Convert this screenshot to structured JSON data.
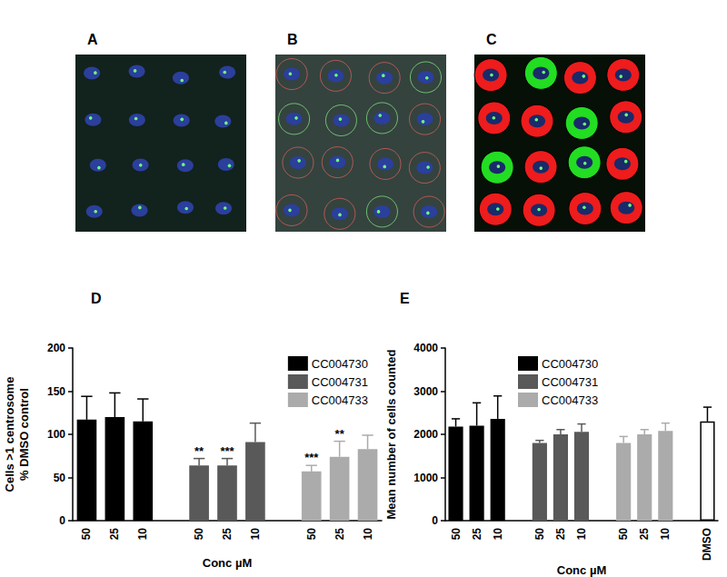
{
  "image_panels": [
    {
      "label": "A"
    },
    {
      "label": "B"
    },
    {
      "label": "C"
    }
  ],
  "chart_data": [
    {
      "type": "bar",
      "title": "D",
      "xlabel": "Conc µM",
      "ylabel": "Cells >1 centrosome\n% DMSO control",
      "categories": [
        "50",
        "25",
        "10",
        null,
        "50",
        "25",
        "10",
        null,
        "50",
        "25",
        "10"
      ],
      "series": [
        {
          "name": "CC004730",
          "color": "#000000",
          "values": [
            117,
            120,
            115,
            null,
            null,
            null,
            null,
            null,
            null,
            null,
            null
          ],
          "errors": [
            27,
            28,
            26,
            null,
            null,
            null,
            null,
            null,
            null,
            null,
            null
          ]
        },
        {
          "name": "CC004731",
          "color": "#595959",
          "values": [
            null,
            null,
            null,
            null,
            64,
            64,
            91,
            null,
            null,
            null,
            null
          ],
          "errors": [
            null,
            null,
            null,
            null,
            8,
            8,
            22,
            null,
            null,
            null,
            null
          ],
          "annotations": [
            null,
            null,
            null,
            null,
            "**",
            "***",
            null,
            null,
            null,
            null,
            null
          ]
        },
        {
          "name": "CC004733",
          "color": "#ababab",
          "values": [
            null,
            null,
            null,
            null,
            null,
            null,
            null,
            null,
            57,
            74,
            83
          ],
          "errors": [
            null,
            null,
            null,
            null,
            null,
            null,
            null,
            null,
            7,
            18,
            16
          ],
          "annotations": [
            null,
            null,
            null,
            null,
            null,
            null,
            null,
            null,
            "***",
            "**",
            null
          ]
        }
      ],
      "ylim": [
        0,
        200
      ],
      "yticks": [
        0,
        50,
        100,
        150,
        200
      ],
      "grid": false,
      "legend": "upper right"
    },
    {
      "type": "bar",
      "title": "E",
      "xlabel": "Conc µM",
      "ylabel": "Mean number of cells counted",
      "categories": [
        "50",
        "25",
        "10",
        null,
        "50",
        "25",
        "10",
        null,
        "50",
        "25",
        "10",
        null,
        "DMSO"
      ],
      "series": [
        {
          "name": "CC004730",
          "color": "#000000",
          "values": [
            2180,
            2200,
            2360,
            null,
            null,
            null,
            null,
            null,
            null,
            null,
            null,
            null,
            null
          ],
          "errors": [
            180,
            530,
            530,
            null,
            null,
            null,
            null,
            null,
            null,
            null,
            null,
            null,
            null
          ]
        },
        {
          "name": "CC004731",
          "color": "#595959",
          "values": [
            null,
            null,
            null,
            null,
            1800,
            2000,
            2060,
            null,
            null,
            null,
            null,
            null,
            null
          ],
          "errors": [
            null,
            null,
            null,
            null,
            60,
            110,
            180,
            null,
            null,
            null,
            null,
            null,
            null
          ]
        },
        {
          "name": "CC004733",
          "color": "#ababab",
          "values": [
            null,
            null,
            null,
            null,
            null,
            null,
            null,
            null,
            1800,
            2000,
            2080,
            null,
            null
          ],
          "errors": [
            null,
            null,
            null,
            null,
            null,
            null,
            null,
            null,
            150,
            110,
            180,
            null,
            null
          ]
        },
        {
          "color": "#ffffff",
          "values": [
            null,
            null,
            null,
            null,
            null,
            null,
            null,
            null,
            null,
            null,
            null,
            null,
            2300
          ],
          "errors": [
            null,
            null,
            null,
            null,
            null,
            null,
            null,
            null,
            null,
            null,
            null,
            null,
            330
          ]
        }
      ],
      "ylim": [
        0,
        4000
      ],
      "yticks": [
        0,
        1000,
        2000,
        3000,
        4000
      ],
      "grid": false,
      "legend": "upper center"
    }
  ]
}
